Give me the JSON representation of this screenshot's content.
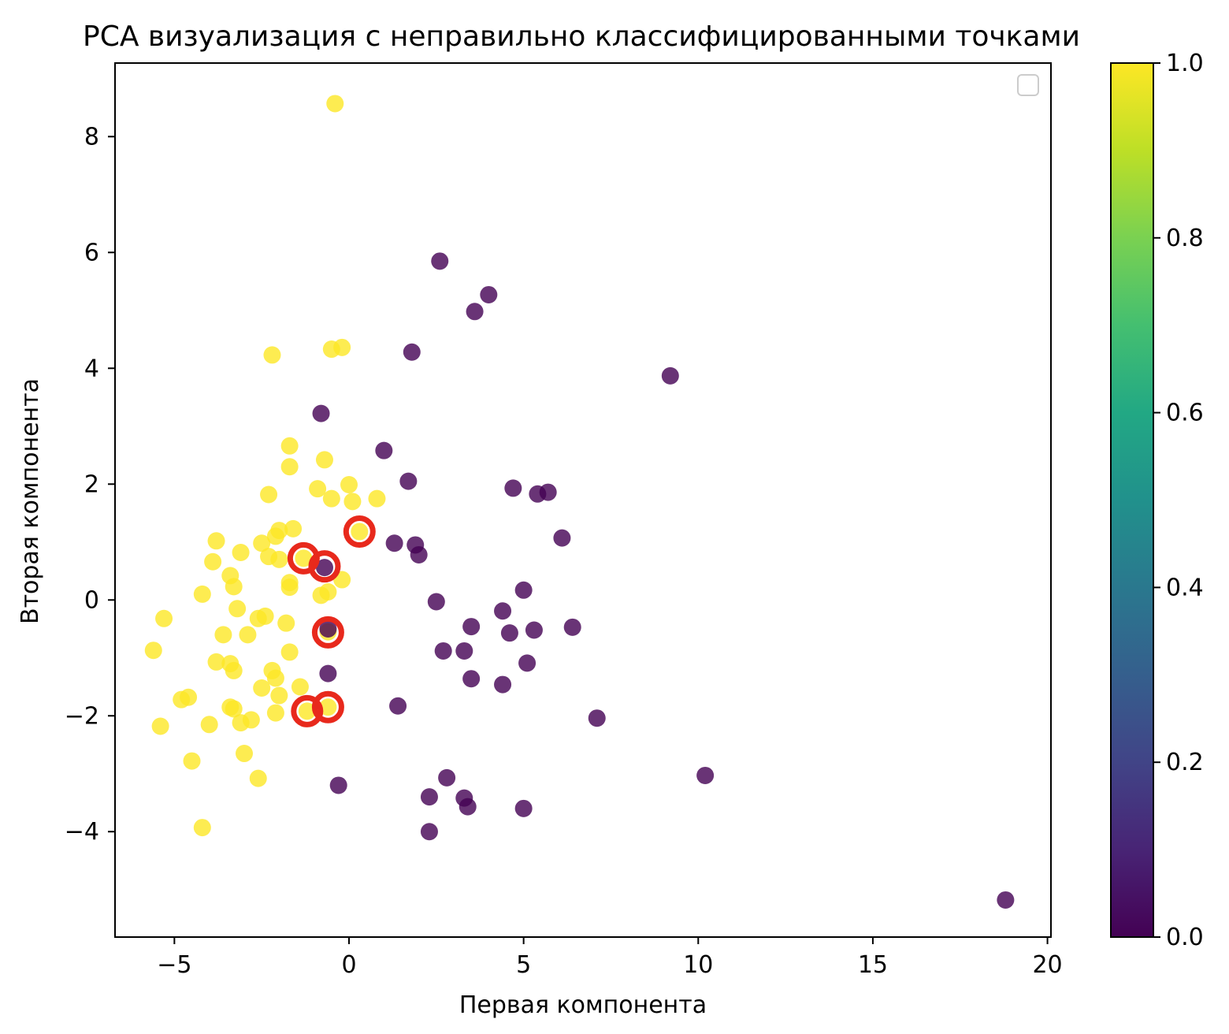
{
  "chart_data": {
    "type": "scatter",
    "title": "PCA визуализация с неправильно классифицированными точками",
    "xlabel": "Первая компонента",
    "ylabel": "Вторая компонента",
    "xlim": [
      -6.7,
      20.1
    ],
    "ylim": [
      -5.82,
      9.27
    ],
    "xticks": [
      -5,
      0,
      5,
      10,
      15,
      20
    ],
    "xtick_labels": [
      "−5",
      "0",
      "5",
      "10",
      "15",
      "20"
    ],
    "yticks": [
      -4,
      -2,
      0,
      2,
      4,
      6,
      8
    ],
    "ytick_labels": [
      "−4",
      "−2",
      "0",
      "2",
      "4",
      "6",
      "8"
    ],
    "grid": false,
    "legend": {
      "placement": "upper right",
      "entries": []
    },
    "colormap": "viridis",
    "colors": {
      "class_0": "#440154",
      "class_1": "#fde725",
      "misclassified_ring": "#e8291c"
    },
    "colorbar": {
      "range": [
        0.0,
        1.0
      ],
      "ticks": [
        0.0,
        0.2,
        0.4,
        0.6,
        0.8,
        1.0
      ],
      "tick_labels": [
        "0.0",
        "0.2",
        "0.4",
        "0.6",
        "0.8",
        "1.0"
      ]
    },
    "series": [
      {
        "class_value": 1,
        "points": [
          [
            -0.4,
            8.57
          ],
          [
            -2.2,
            4.23
          ],
          [
            -0.5,
            4.33
          ],
          [
            -0.2,
            4.36
          ],
          [
            -1.7,
            2.66
          ],
          [
            -0.7,
            2.42
          ],
          [
            -1.7,
            2.3
          ],
          [
            -0.9,
            1.92
          ],
          [
            0.0,
            1.99
          ],
          [
            -2.3,
            1.82
          ],
          [
            -0.5,
            1.75
          ],
          [
            0.1,
            1.7
          ],
          [
            0.8,
            1.75
          ],
          [
            -1.6,
            1.23
          ],
          [
            -2.0,
            1.2
          ],
          [
            -2.1,
            1.1
          ],
          [
            -3.8,
            1.02
          ],
          [
            -2.5,
            0.98
          ],
          [
            -3.1,
            0.82
          ],
          [
            -2.3,
            0.75
          ],
          [
            -2.0,
            0.7
          ],
          [
            -3.9,
            0.66
          ],
          [
            -3.4,
            0.42
          ],
          [
            -3.3,
            0.23
          ],
          [
            -1.7,
            0.3
          ],
          [
            -1.7,
            0.22
          ],
          [
            -0.8,
            0.08
          ],
          [
            -0.6,
            0.14
          ],
          [
            -0.2,
            0.35
          ],
          [
            -4.2,
            0.1
          ],
          [
            -3.2,
            -0.15
          ],
          [
            -2.4,
            -0.28
          ],
          [
            -2.6,
            -0.32
          ],
          [
            -1.8,
            -0.4
          ],
          [
            -5.3,
            -0.32
          ],
          [
            -2.9,
            -0.6
          ],
          [
            -3.6,
            -0.6
          ],
          [
            -5.6,
            -0.87
          ],
          [
            -1.7,
            -0.9
          ],
          [
            -3.8,
            -1.07
          ],
          [
            -3.4,
            -1.1
          ],
          [
            -3.3,
            -1.22
          ],
          [
            -2.2,
            -1.22
          ],
          [
            -2.1,
            -1.35
          ],
          [
            -1.4,
            -1.5
          ],
          [
            -2.5,
            -1.52
          ],
          [
            -2.0,
            -1.65
          ],
          [
            -4.6,
            -1.68
          ],
          [
            -4.8,
            -1.72
          ],
          [
            -3.4,
            -1.85
          ],
          [
            -3.3,
            -1.88
          ],
          [
            -2.1,
            -1.95
          ],
          [
            -2.8,
            -2.07
          ],
          [
            -3.1,
            -2.12
          ],
          [
            -5.4,
            -2.18
          ],
          [
            -4.0,
            -2.15
          ],
          [
            -3.0,
            -2.65
          ],
          [
            -4.5,
            -2.78
          ],
          [
            -2.6,
            -3.08
          ],
          [
            -4.2,
            -3.93
          ],
          [
            0.3,
            1.18
          ],
          [
            -1.3,
            0.72
          ],
          [
            -1.2,
            -1.92
          ],
          [
            -0.6,
            -1.85
          ],
          [
            -0.6,
            -0.55
          ]
        ]
      },
      {
        "class_value": 0,
        "points": [
          [
            2.6,
            5.85
          ],
          [
            4.0,
            5.27
          ],
          [
            3.6,
            4.98
          ],
          [
            1.8,
            4.28
          ],
          [
            9.2,
            3.87
          ],
          [
            -0.8,
            3.22
          ],
          [
            1.0,
            2.58
          ],
          [
            1.7,
            2.05
          ],
          [
            4.7,
            1.93
          ],
          [
            5.4,
            1.83
          ],
          [
            5.7,
            1.86
          ],
          [
            6.1,
            1.07
          ],
          [
            1.3,
            0.98
          ],
          [
            1.9,
            0.95
          ],
          [
            2.0,
            0.78
          ],
          [
            -0.7,
            0.56
          ],
          [
            5.0,
            0.17
          ],
          [
            2.5,
            -0.03
          ],
          [
            4.4,
            -0.19
          ],
          [
            3.5,
            -0.46
          ],
          [
            4.6,
            -0.57
          ],
          [
            5.3,
            -0.52
          ],
          [
            6.4,
            -0.47
          ],
          [
            2.7,
            -0.88
          ],
          [
            3.3,
            -0.88
          ],
          [
            5.1,
            -1.09
          ],
          [
            -0.6,
            -1.27
          ],
          [
            3.5,
            -1.36
          ],
          [
            4.4,
            -1.46
          ],
          [
            1.4,
            -1.83
          ],
          [
            7.1,
            -2.04
          ],
          [
            10.2,
            -3.03
          ],
          [
            2.8,
            -3.07
          ],
          [
            -0.3,
            -3.2
          ],
          [
            2.3,
            -3.4
          ],
          [
            3.3,
            -3.42
          ],
          [
            3.4,
            -3.57
          ],
          [
            5.0,
            -3.6
          ],
          [
            2.3,
            -4.0
          ],
          [
            18.8,
            -5.18
          ],
          [
            -0.6,
            -0.5
          ]
        ]
      }
    ],
    "misclassified": [
      [
        0.3,
        1.18
      ],
      [
        -1.3,
        0.72
      ],
      [
        -0.7,
        0.58
      ],
      [
        -0.6,
        -0.56
      ],
      [
        -1.2,
        -1.92
      ],
      [
        -0.6,
        -1.85
      ]
    ]
  }
}
